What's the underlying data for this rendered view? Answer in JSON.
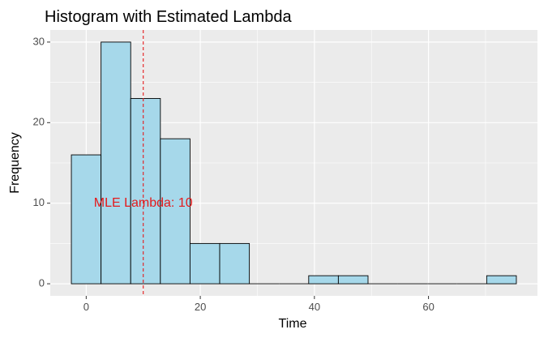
{
  "chart_data": {
    "type": "bar",
    "title": "Histogram with Estimated Lambda",
    "xlabel": "Time",
    "ylabel": "Frequency",
    "bin_width": 5.2,
    "bins": [
      {
        "start": -2.6,
        "end": 2.6,
        "count": 16
      },
      {
        "start": 2.6,
        "end": 7.8,
        "count": 30
      },
      {
        "start": 7.8,
        "end": 13.0,
        "count": 23
      },
      {
        "start": 13.0,
        "end": 18.2,
        "count": 18
      },
      {
        "start": 18.2,
        "end": 23.4,
        "count": 5
      },
      {
        "start": 23.4,
        "end": 28.6,
        "count": 5
      },
      {
        "start": 28.6,
        "end": 33.8,
        "count": 0
      },
      {
        "start": 33.8,
        "end": 39.0,
        "count": 0
      },
      {
        "start": 39.0,
        "end": 44.2,
        "count": 1
      },
      {
        "start": 44.2,
        "end": 49.4,
        "count": 1
      },
      {
        "start": 49.4,
        "end": 54.6,
        "count": 0
      },
      {
        "start": 54.6,
        "end": 59.8,
        "count": 0
      },
      {
        "start": 59.8,
        "end": 65.0,
        "count": 0
      },
      {
        "start": 65.0,
        "end": 70.2,
        "count": 0
      },
      {
        "start": 70.2,
        "end": 75.4,
        "count": 1
      }
    ],
    "xlim": [
      -6.3,
      79.1
    ],
    "ylim": [
      -1.5,
      31.5
    ],
    "x_ticks": [
      0,
      20,
      40,
      60
    ],
    "y_ticks": [
      0,
      10,
      20,
      30
    ],
    "vline": {
      "x": 10,
      "color": "#e41a1c",
      "style": "dashed"
    },
    "annotation": {
      "text": "MLE Lambda: 10",
      "x": 10,
      "y": 10,
      "color": "#e41a1c"
    },
    "colors": {
      "bar_fill": "#a6d8ea",
      "bar_stroke": "#000000",
      "panel_background": "#ebebeb",
      "grid": "#ffffff"
    },
    "grid": true,
    "legend": "none"
  }
}
